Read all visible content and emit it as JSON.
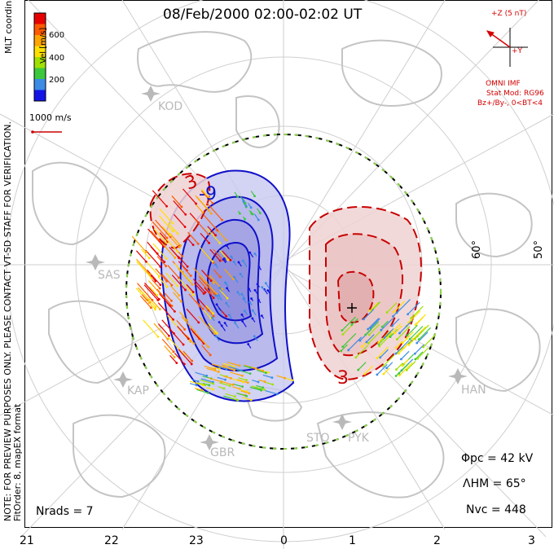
{
  "title": "08/Feb/2000 02:00-02:02 UT",
  "coords_label": "MLT coordinates",
  "note": [
    "NOTE: FOR PREVIEW PURPOSES ONLY. PLEASE CONTACT VT-SD STAFF FOR VERIFICATION.",
    "FitOrder: 8, mapEX format"
  ],
  "colorbar": {
    "unit_label": "Vel [m/s]",
    "ticks": [
      "600",
      "400",
      "200"
    ],
    "colors": [
      "#e60000",
      "#ff5a00",
      "#ffa500",
      "#ffe000",
      "#a0e000",
      "#3cc83c",
      "#3c8ce6",
      "#1414e6"
    ]
  },
  "reference_vector": {
    "label": "1000 m/s",
    "color": "#cc0000"
  },
  "imf": {
    "z_label": "+Z (5 nT)",
    "y_label": "+Y",
    "title": "OMNI IMF",
    "model": "Stat Mod: RG96",
    "condition": "Bz+/By-, 0<BT<4",
    "color": "#d40000"
  },
  "latitude_labels": [
    "60°",
    "50°"
  ],
  "stations": [
    "KOD",
    "SAS",
    "KAP",
    "GBR",
    "STO",
    "PYK",
    "HAN"
  ],
  "stats": {
    "phi_pc": "Φpc = 42 kV",
    "lambda_hm": "ΛHM = 65°",
    "n_vc": "Nvc = 448",
    "n_rads": "Nrads = 7"
  },
  "mlt_labels": [
    "21",
    "22",
    "23",
    "0",
    "1",
    "2",
    "3"
  ],
  "contour_labels": [
    "-9",
    "-3",
    "3",
    "3",
    "-3",
    "+"
  ],
  "contour_colors": {
    "negative": "#1010c8",
    "positive": "#c80000",
    "neg_fill": "#c8c8f0",
    "pos_fill": "#f0d2d2",
    "boundary_dash": "#8ad24a"
  }
}
